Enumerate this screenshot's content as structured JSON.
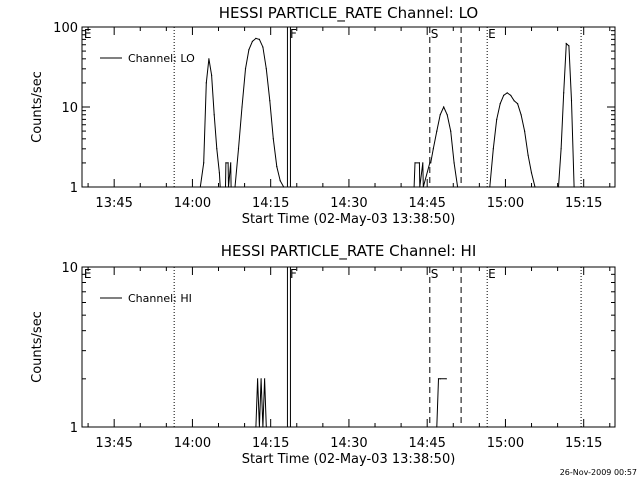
{
  "footer": {
    "timestamp": "26-Nov-2009 00:57"
  },
  "chart_data": [
    {
      "type": "line",
      "title": "HESSI PARTICLE_RATE Channel: LO",
      "xlabel": "Start Time (02-May-03 13:38:50)",
      "ylabel": "Counts/sec",
      "yscale": "log",
      "ylim": [
        1,
        100
      ],
      "yticks": [
        {
          "v": 1,
          "label": "1"
        },
        {
          "v": 10,
          "label": "10"
        },
        {
          "v": 100,
          "label": "100"
        }
      ],
      "xlim": [
        "13:38:50",
        "15:21:00"
      ],
      "xticks": [
        "13:45",
        "14:00",
        "14:15",
        "14:30",
        "14:45",
        "15:00",
        "15:15"
      ],
      "grid": false,
      "legend": {
        "placement": "top-left",
        "entries": [
          "Channel: LO"
        ]
      },
      "markers": [
        {
          "time": "13:39:00",
          "label": "E",
          "style": "none"
        },
        {
          "time": "13:56:30",
          "label": "",
          "style": "dotted"
        },
        {
          "time": "14:18:30",
          "label": "F",
          "style": "double"
        },
        {
          "time": "14:45:30",
          "label": "S",
          "style": "dashed"
        },
        {
          "time": "14:51:30",
          "label": "",
          "style": "dashed"
        },
        {
          "time": "14:56:30",
          "label": "E",
          "style": "dotted"
        },
        {
          "time": "15:14:30",
          "label": "",
          "style": "dotted"
        }
      ],
      "series": [
        {
          "name": "Channel: LO",
          "x": [
            "14:01:30",
            "14:02:10",
            "14:02:40",
            "14:03:10",
            "14:03:40",
            "14:04:10",
            "14:04:40",
            "14:05:10",
            "14:05:20",
            "14:06:20",
            "14:06:25",
            "14:06:50",
            "14:06:55",
            "14:07:20",
            "14:07:25",
            "14:08:10",
            "14:08:50",
            "14:09:30",
            "14:10:10",
            "14:10:50",
            "14:11:30",
            "14:12:10",
            "14:12:50",
            "14:13:30",
            "14:14:10",
            "14:14:50",
            "14:15:30",
            "14:16:10",
            "14:16:50",
            "14:17:30",
            "14:42:30",
            "14:42:40",
            "14:43:30",
            "14:43:35",
            "14:44:10",
            "14:44:15",
            "14:45:30",
            "14:45:40",
            "14:46:10",
            "14:46:50",
            "14:47:30",
            "14:48:10",
            "14:48:50",
            "14:49:30",
            "14:50:10",
            "14:50:50",
            "14:57:00",
            "14:57:40",
            "14:58:20",
            "14:59:00",
            "14:59:40",
            "15:00:20",
            "15:01:00",
            "15:01:40",
            "15:02:20",
            "15:03:00",
            "15:03:40",
            "15:04:20",
            "15:05:00",
            "15:05:40",
            "15:10:10",
            "15:10:40",
            "15:11:10",
            "15:11:40",
            "15:12:10",
            "15:12:40",
            "15:13:10"
          ],
          "y": [
            1,
            2,
            20,
            40,
            25,
            8,
            3,
            1.5,
            1,
            1,
            2,
            2,
            1,
            2,
            1,
            1,
            3,
            10,
            30,
            52,
            66,
            72,
            70,
            56,
            30,
            12,
            4,
            1.8,
            1.2,
            1,
            1,
            2,
            2,
            1,
            2,
            1,
            2,
            2,
            3,
            5,
            8,
            10,
            8,
            5,
            2,
            1,
            1,
            3,
            7,
            11,
            14,
            15,
            14,
            12,
            11,
            8,
            5,
            2.5,
            1.5,
            1,
            1,
            3,
            15,
            62,
            58,
            12,
            1
          ]
        }
      ]
    },
    {
      "type": "line",
      "title": "HESSI PARTICLE_RATE Channel: HI",
      "xlabel": "Start Time (02-May-03 13:38:50)",
      "ylabel": "Counts/sec",
      "yscale": "log",
      "ylim": [
        1,
        10
      ],
      "yticks": [
        {
          "v": 1,
          "label": "1"
        },
        {
          "v": 10,
          "label": "10"
        }
      ],
      "xlim": [
        "13:38:50",
        "15:21:00"
      ],
      "xticks": [
        "13:45",
        "14:00",
        "14:15",
        "14:30",
        "14:45",
        "15:00",
        "15:15"
      ],
      "grid": false,
      "legend": {
        "placement": "top-left",
        "entries": [
          "Channel: HI"
        ]
      },
      "markers": [
        {
          "time": "13:39:00",
          "label": "E",
          "style": "none"
        },
        {
          "time": "13:56:30",
          "label": "",
          "style": "dotted"
        },
        {
          "time": "14:18:30",
          "label": "F",
          "style": "double"
        },
        {
          "time": "14:45:30",
          "label": "S",
          "style": "dashed"
        },
        {
          "time": "14:51:30",
          "label": "",
          "style": "dashed"
        },
        {
          "time": "14:56:30",
          "label": "E",
          "style": "dotted"
        },
        {
          "time": "15:14:30",
          "label": "",
          "style": "dotted"
        }
      ],
      "series": [
        {
          "name": "Channel: HI",
          "x": [
            "14:12:10",
            "14:12:30",
            "14:12:50",
            "14:13:10",
            "14:13:30",
            "14:13:50",
            "14:14:10",
            "14:46:50",
            "14:47:10",
            "14:47:30",
            "14:48:40"
          ],
          "y": [
            1,
            2,
            1,
            2,
            1,
            2,
            1,
            1,
            2,
            2,
            2
          ]
        }
      ]
    }
  ]
}
